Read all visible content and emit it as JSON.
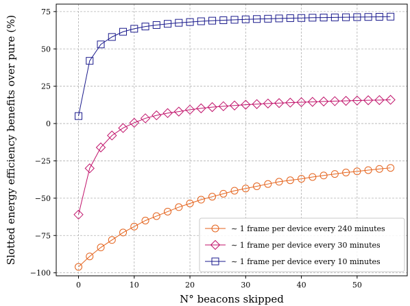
{
  "chart_data": {
    "type": "line",
    "title": "",
    "xlabel": "N° beacons skipped",
    "ylabel": "Slotted energy efficiency benefits over pure (%)",
    "xlim": [
      -4,
      59
    ],
    "ylim": [
      -102,
      80
    ],
    "xticks": [
      0,
      10,
      20,
      30,
      40,
      50
    ],
    "yticks": [
      -100,
      -75,
      -50,
      -25,
      0,
      25,
      50,
      75
    ],
    "grid": true,
    "legend_position": "bottom-right",
    "x": [
      0,
      2,
      4,
      6,
      8,
      10,
      12,
      14,
      16,
      18,
      20,
      22,
      24,
      26,
      28,
      30,
      32,
      34,
      36,
      38,
      40,
      42,
      44,
      46,
      48,
      50,
      52,
      54,
      56
    ],
    "series": [
      {
        "name": "∼ 1 frame per device every 240 minutes",
        "color": "#e4621b",
        "marker": "circle",
        "values": [
          -96,
          -89,
          -83,
          -78,
          -73,
          -69,
          -65,
          -62,
          -59,
          -56,
          -53.5,
          -51,
          -49,
          -47,
          -45,
          -43.5,
          -42,
          -40.5,
          -39,
          -38,
          -37,
          -35.8,
          -34.8,
          -33.8,
          -32.8,
          -32,
          -31.2,
          -30.4,
          -29.7
        ]
      },
      {
        "name": "∼ 1 frame per device every 30 minutes",
        "color": "#c0126a",
        "marker": "diamond",
        "values": [
          -61,
          -30,
          -16,
          -8,
          -3,
          0.5,
          3.5,
          5.5,
          7,
          8,
          9.3,
          10.2,
          11,
          11.6,
          12.1,
          12.6,
          13,
          13.4,
          13.7,
          14,
          14.3,
          14.5,
          14.8,
          15,
          15.2,
          15.4,
          15.6,
          15.7,
          15.9
        ]
      },
      {
        "name": "∼ 1 frame per device every 10 minutes",
        "color": "#1a1a8c",
        "marker": "square",
        "values": [
          5,
          42,
          53,
          58,
          61.5,
          63.5,
          65,
          66,
          66.8,
          67.5,
          68,
          68.5,
          68.9,
          69.2,
          69.5,
          69.8,
          70,
          70.2,
          70.4,
          70.6,
          70.7,
          70.9,
          71,
          71.1,
          71.2,
          71.3,
          71.4,
          71.5,
          71.6
        ]
      }
    ]
  }
}
